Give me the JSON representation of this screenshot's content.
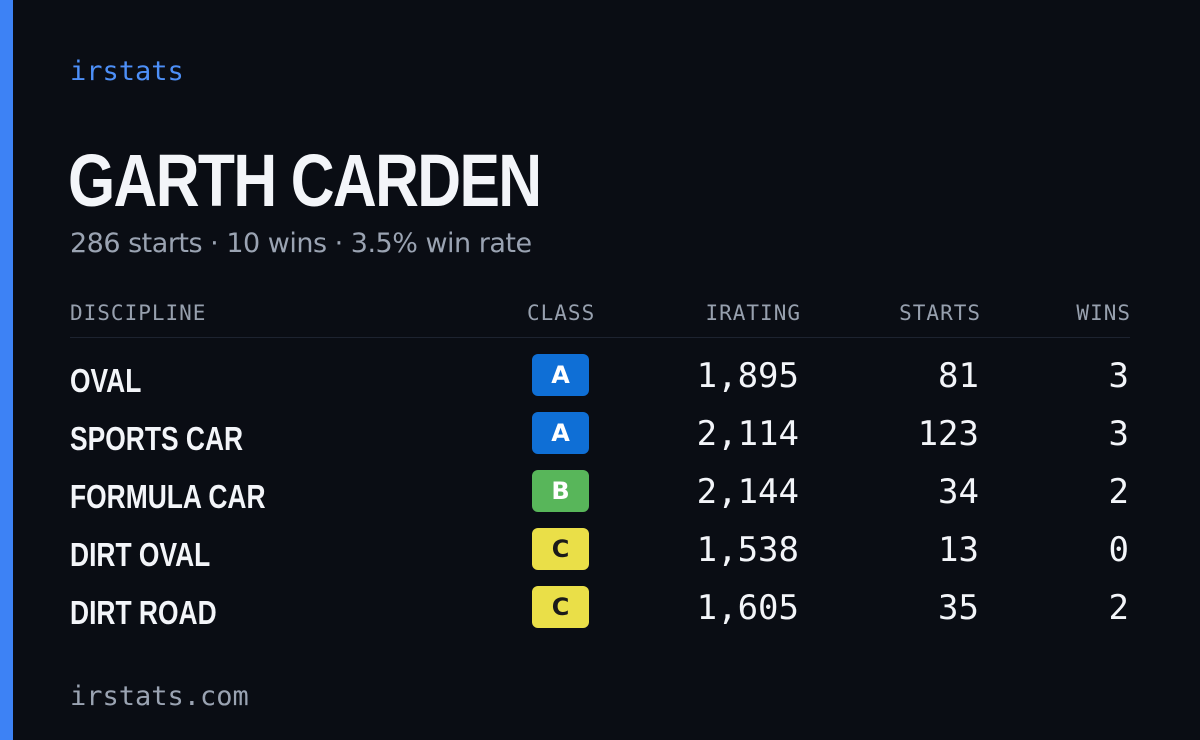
{
  "brand": "irstats",
  "driver": {
    "name": "GARTH CARDEN",
    "summary": "286 starts · 10 wins · 3.5% win rate"
  },
  "table": {
    "headers": {
      "discipline": "DISCIPLINE",
      "class": "CLASS",
      "irating": "IRATING",
      "starts": "STARTS",
      "wins": "WINS"
    },
    "rows": [
      {
        "discipline": "OVAL",
        "class": "A",
        "irating": "1,895",
        "starts": "81",
        "wins": "3"
      },
      {
        "discipline": "SPORTS CAR",
        "class": "A",
        "irating": "2,114",
        "starts": "123",
        "wins": "3"
      },
      {
        "discipline": "FORMULA CAR",
        "class": "B",
        "irating": "2,144",
        "starts": "34",
        "wins": "2"
      },
      {
        "discipline": "DIRT OVAL",
        "class": "C",
        "irating": "1,538",
        "starts": "13",
        "wins": "0"
      },
      {
        "discipline": "DIRT ROAD",
        "class": "C",
        "irating": "1,605",
        "starts": "35",
        "wins": "2"
      }
    ]
  },
  "class_colors": {
    "A": {
      "bg": "#0f6fd6",
      "fg": "#ffffff"
    },
    "B": {
      "bg": "#58b65a",
      "fg": "#ffffff"
    },
    "C": {
      "bg": "#eadf48",
      "fg": "#1a1a1a"
    }
  },
  "colors": {
    "accent": "#3d82f5",
    "background": "#0a0d14"
  },
  "footer": "irstats.com"
}
